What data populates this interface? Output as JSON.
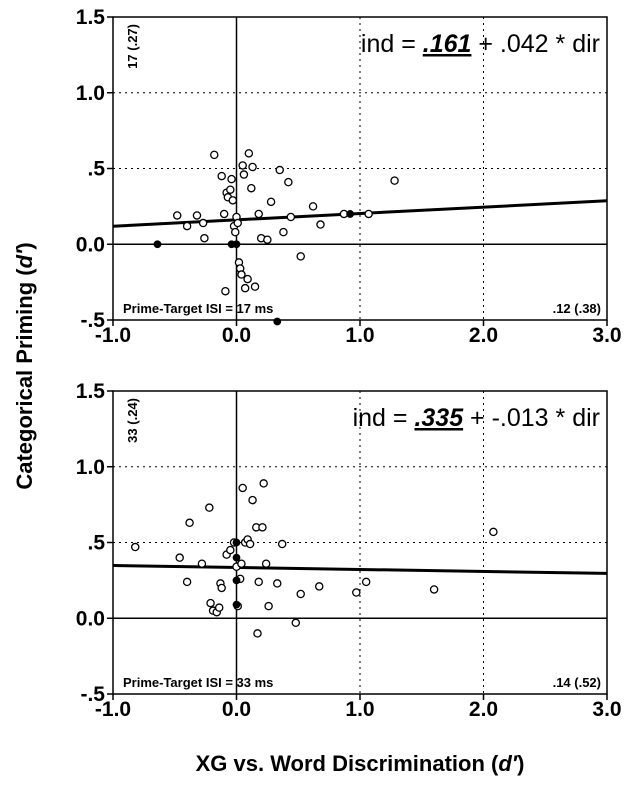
{
  "chart_data": [
    {
      "type": "scatter",
      "panel": "top",
      "xlim": [
        -1.0,
        3.0
      ],
      "ylim": [
        -0.5,
        1.5
      ],
      "x_ticks": [
        "-1.0",
        "0.0",
        "1.0",
        "2.0",
        "3.0"
      ],
      "y_ticks": [
        "-.5",
        "0.0",
        ".5",
        "1.0",
        "1.5"
      ],
      "grid": "dotted",
      "equation": {
        "prefix": "ind = ",
        "intercept": ".161",
        "suffix": " + .042 * dir"
      },
      "corner_left_rotated": "17 (.27)",
      "bottom_left_label": "Prime-Target ISI = 17 ms",
      "bottom_right_label": ".12 (.38)",
      "regression": {
        "intercept": 0.161,
        "slope": 0.042
      },
      "points_open": [
        [
          -0.48,
          0.19
        ],
        [
          -0.4,
          0.12
        ],
        [
          -0.32,
          0.19
        ],
        [
          -0.27,
          0.14
        ],
        [
          -0.26,
          0.04
        ],
        [
          -0.18,
          0.59
        ],
        [
          -0.12,
          0.45
        ],
        [
          -0.1,
          0.2
        ],
        [
          -0.09,
          -0.31
        ],
        [
          -0.08,
          0.34
        ],
        [
          -0.07,
          0.31
        ],
        [
          -0.05,
          0.36
        ],
        [
          -0.04,
          0.43
        ],
        [
          -0.03,
          0.29
        ],
        [
          -0.02,
          0.12
        ],
        [
          -0.01,
          0.08
        ],
        [
          0.0,
          0.18
        ],
        [
          0.01,
          0.14
        ],
        [
          0.02,
          -0.12
        ],
        [
          0.03,
          -0.16
        ],
        [
          0.04,
          -0.2
        ],
        [
          0.05,
          0.52
        ],
        [
          0.06,
          0.46
        ],
        [
          0.07,
          -0.29
        ],
        [
          0.09,
          -0.23
        ],
        [
          0.1,
          0.6
        ],
        [
          0.12,
          0.37
        ],
        [
          0.13,
          0.51
        ],
        [
          0.15,
          -0.28
        ],
        [
          0.18,
          0.2
        ],
        [
          0.2,
          0.04
        ],
        [
          0.25,
          0.03
        ],
        [
          0.28,
          0.28
        ],
        [
          0.35,
          0.49
        ],
        [
          0.38,
          0.08
        ],
        [
          0.42,
          0.41
        ],
        [
          0.44,
          0.18
        ],
        [
          0.52,
          -0.08
        ],
        [
          0.62,
          0.25
        ],
        [
          0.68,
          0.13
        ],
        [
          0.87,
          0.2
        ],
        [
          1.07,
          0.2
        ],
        [
          1.28,
          0.42
        ]
      ],
      "points_filled": [
        [
          -0.64,
          0.0
        ],
        [
          -0.04,
          0.0
        ],
        [
          0.0,
          0.0
        ],
        [
          0.92,
          0.2
        ],
        [
          0.33,
          -0.51
        ]
      ]
    },
    {
      "type": "scatter",
      "panel": "bottom",
      "xlim": [
        -1.0,
        3.0
      ],
      "ylim": [
        -0.5,
        1.5
      ],
      "x_ticks": [
        "-1.0",
        "0.0",
        "1.0",
        "2.0",
        "3.0"
      ],
      "y_ticks": [
        "-.5",
        "0.0",
        ".5",
        "1.0",
        "1.5"
      ],
      "grid": "dotted",
      "equation": {
        "prefix": "ind = ",
        "intercept": ".335",
        "suffix": " + -.013 * dir"
      },
      "corner_left_rotated": "33 (.24)",
      "bottom_left_label": "Prime-Target ISI = 33 ms",
      "bottom_right_label": ".14 (.52)",
      "regression": {
        "intercept": 0.335,
        "slope": -0.013
      },
      "points_open": [
        [
          -0.82,
          0.47
        ],
        [
          -0.46,
          0.4
        ],
        [
          -0.4,
          0.24
        ],
        [
          -0.38,
          0.63
        ],
        [
          -0.28,
          0.36
        ],
        [
          -0.22,
          0.73
        ],
        [
          -0.21,
          0.1
        ],
        [
          -0.19,
          0.05
        ],
        [
          -0.16,
          0.04
        ],
        [
          -0.14,
          0.07
        ],
        [
          -0.13,
          0.23
        ],
        [
          -0.12,
          0.2
        ],
        [
          -0.08,
          0.42
        ],
        [
          -0.05,
          0.45
        ],
        [
          -0.02,
          0.5
        ],
        [
          0.0,
          0.34
        ],
        [
          0.01,
          0.08
        ],
        [
          0.03,
          0.26
        ],
        [
          0.04,
          0.36
        ],
        [
          0.05,
          0.86
        ],
        [
          0.07,
          0.5
        ],
        [
          0.09,
          0.52
        ],
        [
          0.11,
          0.49
        ],
        [
          0.13,
          0.78
        ],
        [
          0.16,
          0.6
        ],
        [
          0.17,
          -0.1
        ],
        [
          0.18,
          0.24
        ],
        [
          0.21,
          0.6
        ],
        [
          0.22,
          0.89
        ],
        [
          0.24,
          0.36
        ],
        [
          0.26,
          0.08
        ],
        [
          0.33,
          0.23
        ],
        [
          0.37,
          0.49
        ],
        [
          0.48,
          -0.03
        ],
        [
          0.52,
          0.16
        ],
        [
          0.67,
          0.21
        ],
        [
          0.97,
          0.17
        ],
        [
          1.05,
          0.24
        ],
        [
          1.6,
          0.19
        ],
        [
          2.08,
          0.57
        ]
      ],
      "points_filled": [
        [
          0.0,
          0.5
        ],
        [
          0.0,
          0.4
        ],
        [
          0.0,
          0.25
        ],
        [
          0.0,
          0.09
        ]
      ]
    }
  ],
  "shared": {
    "ylabel_main": "Categorical Priming (",
    "ylabel_dprime": "d′",
    "ylabel_close": ")",
    "xlabel_main": "XG vs. Word Discrimination (",
    "xlabel_dprime": "d′",
    "xlabel_close": ")"
  }
}
